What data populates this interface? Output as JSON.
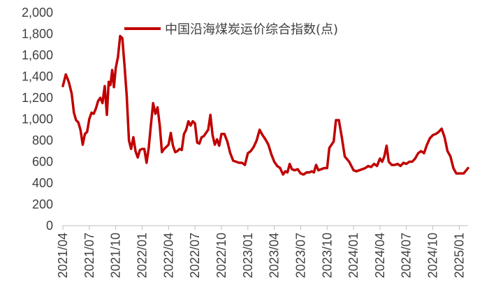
{
  "chart_data": {
    "type": "line",
    "title": "",
    "xlabel": "",
    "ylabel": "",
    "ylim": [
      0,
      2000
    ],
    "y_ticks": [
      "0",
      "200",
      "400",
      "600",
      "800",
      "1,000",
      "1,200",
      "1,400",
      "1,600",
      "1,800",
      "2,000"
    ],
    "y_tick_values": [
      0,
      200,
      400,
      600,
      800,
      1000,
      1200,
      1400,
      1600,
      1800,
      2000
    ],
    "x_ticks": [
      "2021/04",
      "2021/07",
      "2021/10",
      "2022/01",
      "2022/04",
      "2022/07",
      "2022/10",
      "2023/01",
      "2023/04",
      "2023/07",
      "2023/10",
      "2024/01",
      "2024/04",
      "2024/07",
      "2024/10",
      "2025/01"
    ],
    "x_range": [
      "2021/04",
      "2025/02"
    ],
    "grid": false,
    "legend_position": "top-center",
    "line_color": "#c00000",
    "series": [
      {
        "name": "中国沿海煤炭运价综合指数(点)",
        "points": [
          [
            "2021/04",
            1310
          ],
          [
            "2021/04",
            1420
          ],
          [
            "2021/04",
            1350
          ],
          [
            "2021/05",
            1240
          ],
          [
            "2021/05",
            1060
          ],
          [
            "2021/05",
            990
          ],
          [
            "2021/05",
            970
          ],
          [
            "2021/06",
            900
          ],
          [
            "2021/06",
            760
          ],
          [
            "2021/06",
            860
          ],
          [
            "2021/06",
            880
          ],
          [
            "2021/07",
            1000
          ],
          [
            "2021/07",
            1060
          ],
          [
            "2021/07",
            1050
          ],
          [
            "2021/07",
            1100
          ],
          [
            "2021/08",
            1170
          ],
          [
            "2021/08",
            1200
          ],
          [
            "2021/08",
            1150
          ],
          [
            "2021/08",
            1310
          ],
          [
            "2021/09",
            1040
          ],
          [
            "2021/09",
            1350
          ],
          [
            "2021/09",
            1320
          ],
          [
            "2021/09",
            1460
          ],
          [
            "2021/09",
            1300
          ],
          [
            "2021/10",
            1480
          ],
          [
            "2021/10",
            1580
          ],
          [
            "2021/10",
            1780
          ],
          [
            "2021/10",
            1760
          ],
          [
            "2021/11",
            1500
          ],
          [
            "2021/11",
            1220
          ],
          [
            "2021/11",
            800
          ],
          [
            "2021/11",
            720
          ],
          [
            "2021/12",
            830
          ],
          [
            "2021/12",
            700
          ],
          [
            "2021/12",
            640
          ],
          [
            "2021/12",
            710
          ],
          [
            "2022/01",
            720
          ],
          [
            "2022/01",
            720
          ],
          [
            "2022/01",
            590
          ],
          [
            "2022/01",
            730
          ],
          [
            "2022/02",
            950
          ],
          [
            "2022/02",
            1150
          ],
          [
            "2022/02",
            1050
          ],
          [
            "2022/02",
            1110
          ],
          [
            "2022/03",
            940
          ],
          [
            "2022/03",
            690
          ],
          [
            "2022/03",
            720
          ],
          [
            "2022/03",
            740
          ],
          [
            "2022/04",
            760
          ],
          [
            "2022/04",
            870
          ],
          [
            "2022/04",
            750
          ],
          [
            "2022/04",
            690
          ],
          [
            "2022/05",
            700
          ],
          [
            "2022/05",
            720
          ],
          [
            "2022/05",
            710
          ],
          [
            "2022/05",
            860
          ],
          [
            "2022/06",
            900
          ],
          [
            "2022/06",
            980
          ],
          [
            "2022/06",
            940
          ],
          [
            "2022/06",
            980
          ],
          [
            "2022/07",
            960
          ],
          [
            "2022/07",
            780
          ],
          [
            "2022/07",
            770
          ],
          [
            "2022/07",
            830
          ],
          [
            "2022/08",
            840
          ],
          [
            "2022/08",
            870
          ],
          [
            "2022/08",
            900
          ],
          [
            "2022/08",
            1040
          ],
          [
            "2022/09",
            850
          ],
          [
            "2022/09",
            760
          ],
          [
            "2022/09",
            810
          ],
          [
            "2022/09",
            750
          ],
          [
            "2022/10",
            860
          ],
          [
            "2022/10",
            860
          ],
          [
            "2022/10",
            790
          ],
          [
            "2022/11",
            680
          ],
          [
            "2022/11",
            610
          ],
          [
            "2022/11",
            600
          ],
          [
            "2022/12",
            590
          ],
          [
            "2022/12",
            590
          ],
          [
            "2022/12",
            570
          ],
          [
            "2023/01",
            680
          ],
          [
            "2023/01",
            700
          ],
          [
            "2023/01",
            740
          ],
          [
            "2023/02",
            800
          ],
          [
            "2023/02",
            900
          ],
          [
            "2023/02",
            850
          ],
          [
            "2023/03",
            810
          ],
          [
            "2023/03",
            760
          ],
          [
            "2023/03",
            670
          ],
          [
            "2023/04",
            600
          ],
          [
            "2023/04",
            560
          ],
          [
            "2023/04",
            540
          ],
          [
            "2023/05",
            480
          ],
          [
            "2023/05",
            510
          ],
          [
            "2023/05",
            500
          ],
          [
            "2023/05",
            580
          ],
          [
            "2023/06",
            530
          ],
          [
            "2023/06",
            520
          ],
          [
            "2023/06",
            530
          ],
          [
            "2023/07",
            490
          ],
          [
            "2023/07",
            480
          ],
          [
            "2023/07",
            500
          ],
          [
            "2023/08",
            500
          ],
          [
            "2023/08",
            510
          ],
          [
            "2023/08",
            500
          ],
          [
            "2023/08",
            570
          ],
          [
            "2023/09",
            520
          ],
          [
            "2023/09",
            530
          ],
          [
            "2023/09",
            540
          ],
          [
            "2023/10",
            540
          ],
          [
            "2023/10",
            730
          ],
          [
            "2023/10",
            760
          ],
          [
            "2023/10",
            790
          ],
          [
            "2023/11",
            990
          ],
          [
            "2023/11",
            990
          ],
          [
            "2023/11",
            830
          ],
          [
            "2023/12",
            650
          ],
          [
            "2023/12",
            600
          ],
          [
            "2024/01",
            520
          ],
          [
            "2024/01",
            510
          ],
          [
            "2024/01",
            520
          ],
          [
            "2024/02",
            530
          ],
          [
            "2024/02",
            540
          ],
          [
            "2024/02",
            560
          ],
          [
            "2024/03",
            550
          ],
          [
            "2024/03",
            580
          ],
          [
            "2024/03",
            560
          ],
          [
            "2024/04",
            630
          ],
          [
            "2024/04",
            600
          ],
          [
            "2024/04",
            650
          ],
          [
            "2024/04",
            750
          ],
          [
            "2024/05",
            600
          ],
          [
            "2024/05",
            570
          ],
          [
            "2024/05",
            570
          ],
          [
            "2024/06",
            580
          ],
          [
            "2024/06",
            560
          ],
          [
            "2024/06",
            590
          ],
          [
            "2024/07",
            580
          ],
          [
            "2024/07",
            600
          ],
          [
            "2024/07",
            600
          ],
          [
            "2024/08",
            630
          ],
          [
            "2024/08",
            680
          ],
          [
            "2024/08",
            700
          ],
          [
            "2024/09",
            680
          ],
          [
            "2024/09",
            760
          ],
          [
            "2024/09",
            820
          ],
          [
            "2024/10",
            850
          ],
          [
            "2024/10",
            860
          ],
          [
            "2024/10",
            880
          ],
          [
            "2024/11",
            910
          ],
          [
            "2024/11",
            830
          ],
          [
            "2024/11",
            700
          ],
          [
            "2024/12",
            650
          ],
          [
            "2024/12",
            540
          ],
          [
            "2024/12",
            490
          ],
          [
            "2025/01",
            490
          ],
          [
            "2025/01",
            490
          ],
          [
            "2025/02",
            540
          ]
        ]
      }
    ]
  }
}
